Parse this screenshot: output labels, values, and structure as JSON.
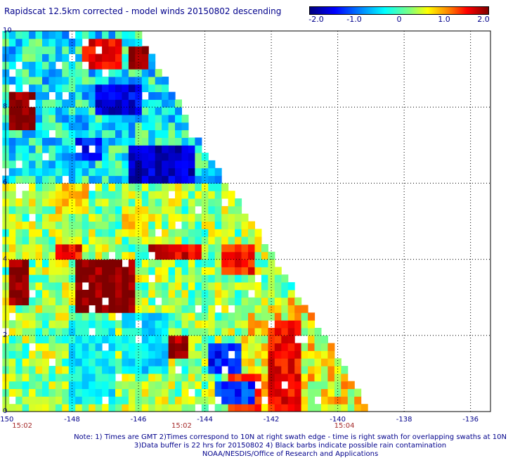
{
  "title": "Rapidscat 12.5km corrected - model winds 20150802 descending",
  "colorbar": {
    "ticks": [
      "-2.0",
      "-1.0",
      "0",
      "1.0",
      "2.0"
    ],
    "tick_values": [
      -2,
      -1,
      0,
      1,
      2
    ]
  },
  "x_axis": {
    "ticks": [
      "-150",
      "-148",
      "-146",
      "-144",
      "-142",
      "-140",
      "-138",
      "-136"
    ],
    "tick_values": [
      -150,
      -148,
      -146,
      -144,
      -142,
      -140,
      -138,
      -136
    ]
  },
  "y_axis": {
    "ticks": [
      "0",
      "2",
      "4",
      "6",
      "8",
      "10"
    ],
    "tick_values": [
      0,
      2,
      4,
      6,
      8,
      10
    ]
  },
  "times": [
    {
      "label": "15:02",
      "lon": -149.5
    },
    {
      "label": "15:02",
      "lon": -144.7
    },
    {
      "label": "15:04",
      "lon": -139.8
    }
  ],
  "notes": [
    "Note: 1) Times are GMT 2)Times correspond to 10N at right swath edge - time is right swath for overlapping swaths at 10N",
    "3)Data buffer is 22 hrs for 20150802 4) Black barbs indicate possible rain contamination",
    "NOAA/NESDIS/Office of Research and Applications"
  ],
  "colors": {
    "axis_text": "#00008b",
    "time_text": "#a52a2a",
    "frame": "#000000"
  },
  "chart_data": {
    "type": "heatmap",
    "title": "Rapidscat 12.5km corrected - model winds 20150802 descending",
    "xlim": [
      -150,
      -135.4
    ],
    "ylim": [
      0,
      10
    ],
    "value_range": [
      -2.0,
      2.0
    ],
    "swath_edge": [
      [
        -146.1,
        10
      ],
      [
        -144.2,
        7
      ],
      [
        -140.5,
        2
      ],
      [
        -139.1,
        0
      ]
    ],
    "regions": [
      {
        "lon": [
          -149.9,
          -149.2
        ],
        "lat": [
          7.5,
          8.4
        ],
        "value": 2.0
      },
      {
        "lon": [
          -148.0,
          -146.2
        ],
        "lat": [
          2.7,
          4.1
        ],
        "value": 2.0
      },
      {
        "lon": [
          -147.8,
          -146.6
        ],
        "lat": [
          9.1,
          9.8
        ],
        "value": 1.6
      },
      {
        "lon": [
          -146.4,
          -145.8
        ],
        "lat": [
          9.0,
          9.5
        ],
        "value": 2.0
      },
      {
        "lon": [
          -149.9,
          -149.3
        ],
        "lat": [
          2.8,
          4.0
        ],
        "value": 2.0
      },
      {
        "lon": [
          -148.6,
          -147.8
        ],
        "lat": [
          4.0,
          4.5
        ],
        "value": 1.5
      },
      {
        "lon": [
          -145.8,
          -144.2
        ],
        "lat": [
          4.0,
          4.4
        ],
        "value": 1.6
      },
      {
        "lon": [
          -143.6,
          -142.6
        ],
        "lat": [
          3.6,
          4.4
        ],
        "value": 1.4
      },
      {
        "lon": [
          -142.1,
          -141.2
        ],
        "lat": [
          0.1,
          2.4
        ],
        "value": 1.5
      },
      {
        "lon": [
          -143.4,
          -142.4
        ],
        "lat": [
          0.1,
          0.9
        ],
        "value": 1.2
      },
      {
        "lon": [
          -145.2,
          -144.6
        ],
        "lat": [
          1.5,
          2.0
        ],
        "value": 1.8
      },
      {
        "lon": [
          -147.4,
          -146.0
        ],
        "lat": [
          7.9,
          8.7
        ],
        "value": -1.6
      },
      {
        "lon": [
          -148.0,
          -147.2
        ],
        "lat": [
          6.6,
          7.3
        ],
        "value": -1.5
      },
      {
        "lon": [
          -146.4,
          -144.4
        ],
        "lat": [
          6.0,
          7.0
        ],
        "value": -1.7
      },
      {
        "lon": [
          -144.0,
          -143.0
        ],
        "lat": [
          1.0,
          1.8
        ],
        "value": -1.4
      },
      {
        "lon": [
          -143.8,
          -142.6
        ],
        "lat": [
          0.2,
          0.8
        ],
        "value": -1.3
      },
      {
        "lon": [
          -148.2,
          -146.8
        ],
        "lat": [
          0.2,
          2.3
        ],
        "value": -0.5
      },
      {
        "lon": [
          -146.5,
          -145.2
        ],
        "lat": [
          1.0,
          2.5
        ],
        "value": -0.6
      },
      {
        "lon": [
          -148.6,
          -147.6
        ],
        "lat": [
          5.2,
          6.0
        ],
        "value": 0.7
      },
      {
        "lon": [
          -146.6,
          -145.8
        ],
        "lat": [
          4.6,
          5.4
        ],
        "value": 0.6
      }
    ]
  }
}
